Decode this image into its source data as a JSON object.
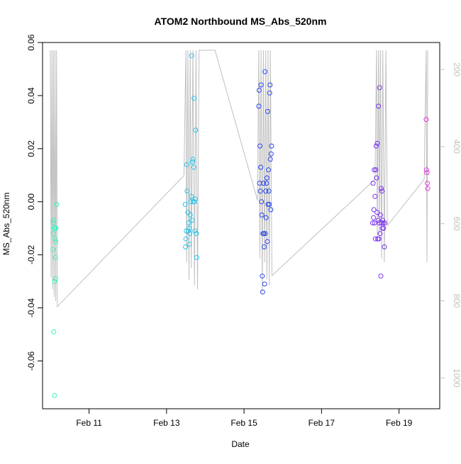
{
  "chart_data": {
    "type": "scatter",
    "title": "ATOM2 Northbound MS_Abs_520nm",
    "xlabel": "Date",
    "ylabel": "MS_Abs_520nm",
    "x_unit": "days since Feb 10",
    "xlim": [
      9.8,
      20.05
    ],
    "ylim": [
      -0.078,
      0.06
    ],
    "x_ticks": [
      {
        "value": 11,
        "label": "Feb 11"
      },
      {
        "value": 13,
        "label": "Feb 13"
      },
      {
        "value": 15,
        "label": "Feb 15"
      },
      {
        "value": 17,
        "label": "Feb 17"
      },
      {
        "value": 19,
        "label": "Feb 19"
      }
    ],
    "y_ticks": [
      {
        "value": -0.06,
        "label": "-0.06"
      },
      {
        "value": -0.04,
        "label": "-0.04"
      },
      {
        "value": -0.02,
        "label": "-0.02"
      },
      {
        "value": 0.0,
        "label": "0.00"
      },
      {
        "value": 0.02,
        "label": "0.02"
      },
      {
        "value": 0.04,
        "label": "0.04"
      },
      {
        "value": 0.06,
        "label": "0.06"
      }
    ],
    "y2_label": "",
    "y2_ticks": [
      {
        "value": 200,
        "label": "200"
      },
      {
        "value": 400,
        "label": "400"
      },
      {
        "value": 600,
        "label": "600"
      },
      {
        "value": 800,
        "label": "800"
      },
      {
        "value": 1000,
        "label": "1000"
      }
    ],
    "y2lim": [
      1080,
      130
    ],
    "grid": false,
    "legend": "none",
    "depth_color": "#bfbfbf",
    "series": [
      {
        "color": "#3cf0bd",
        "points": [
          [
            10.07,
            -0.018
          ],
          [
            10.08,
            -0.012
          ],
          [
            10.08,
            -0.008
          ],
          [
            10.09,
            -0.007
          ],
          [
            10.09,
            -0.049
          ],
          [
            10.1,
            -0.01
          ],
          [
            10.11,
            -0.03
          ],
          [
            10.11,
            -0.073
          ],
          [
            10.12,
            -0.01
          ],
          [
            10.12,
            -0.014
          ],
          [
            10.13,
            -0.021
          ],
          [
            10.13,
            -0.029
          ],
          [
            10.14,
            -0.015
          ],
          [
            10.15,
            -0.01
          ],
          [
            10.16,
            -0.001
          ]
        ]
      },
      {
        "color": "#27c3ea",
        "points": [
          [
            13.48,
            -0.001
          ],
          [
            13.49,
            -0.017
          ],
          [
            13.5,
            -0.014
          ],
          [
            13.51,
            -0.011
          ],
          [
            13.52,
            0.014
          ],
          [
            13.53,
            0.004
          ],
          [
            13.55,
            -0.004
          ],
          [
            13.56,
            -0.011
          ],
          [
            13.57,
            -0.008
          ],
          [
            13.58,
            -0.01
          ],
          [
            13.59,
            -0.016
          ],
          [
            13.6,
            -0.012
          ],
          [
            13.61,
            -0.005
          ],
          [
            13.62,
            0.0
          ],
          [
            13.64,
            0.002
          ],
          [
            13.65,
            0.055
          ],
          [
            13.66,
            -0.007
          ],
          [
            13.67,
            0.015
          ],
          [
            13.68,
            0.016
          ],
          [
            13.69,
            0.0
          ],
          [
            13.7,
            0.013
          ],
          [
            13.71,
            0.039
          ],
          [
            13.72,
            0.0
          ],
          [
            13.73,
            -0.011
          ],
          [
            13.74,
            0.001
          ],
          [
            13.75,
            0.027
          ],
          [
            13.77,
            -0.012
          ],
          [
            13.78,
            -0.021
          ]
        ]
      },
      {
        "color": "#2b47f0",
        "points": [
          [
            15.38,
            0.036
          ],
          [
            15.39,
            0.042
          ],
          [
            15.4,
            0.007
          ],
          [
            15.41,
            0.021
          ],
          [
            15.42,
            0.004
          ],
          [
            15.43,
            0.013
          ],
          [
            15.44,
            0.044
          ],
          [
            15.45,
            0.0
          ],
          [
            15.46,
            -0.005
          ],
          [
            15.47,
            -0.028
          ],
          [
            15.48,
            -0.034
          ],
          [
            15.49,
            -0.012
          ],
          [
            15.5,
            0.007
          ],
          [
            15.51,
            -0.012
          ],
          [
            15.52,
            -0.017
          ],
          [
            15.53,
            -0.031
          ],
          [
            15.54,
            0.049
          ],
          [
            15.55,
            -0.012
          ],
          [
            15.56,
            0.004
          ],
          [
            15.57,
            -0.006
          ],
          [
            15.58,
            0.007
          ],
          [
            15.59,
            0.009
          ],
          [
            15.6,
            -0.015
          ],
          [
            15.61,
            0.034
          ],
          [
            15.62,
            -0.001
          ],
          [
            15.63,
            0.012
          ],
          [
            15.64,
            0.004
          ],
          [
            15.65,
            -0.001
          ],
          [
            15.66,
            0.041
          ],
          [
            15.67,
            0.044
          ],
          [
            15.68,
            0.016
          ],
          [
            15.69,
            -0.003
          ],
          [
            15.7,
            0.018
          ],
          [
            15.71,
            0.021
          ]
        ]
      },
      {
        "color": "#7a2ff0",
        "points": [
          [
            18.32,
            -0.008
          ],
          [
            18.33,
            0.007
          ],
          [
            18.34,
            -0.006
          ],
          [
            18.35,
            -0.003
          ],
          [
            18.36,
            0.012
          ],
          [
            18.37,
            -0.008
          ],
          [
            18.38,
            0.002
          ],
          [
            18.39,
            -0.014
          ],
          [
            18.4,
            0.012
          ],
          [
            18.41,
            0.021
          ],
          [
            18.42,
            0.009
          ],
          [
            18.43,
            -0.004
          ],
          [
            18.44,
            0.022
          ],
          [
            18.45,
            -0.014
          ],
          [
            18.46,
            -0.007
          ],
          [
            18.47,
            0.036
          ],
          [
            18.48,
            -0.014
          ],
          [
            18.49,
            -0.008
          ],
          [
            18.5,
            0.043
          ],
          [
            18.51,
            -0.012
          ],
          [
            18.52,
            -0.005
          ],
          [
            18.53,
            -0.028
          ],
          [
            18.54,
            0.005
          ],
          [
            18.55,
            -0.008
          ],
          [
            18.56,
            0.004
          ],
          [
            18.57,
            -0.01
          ],
          [
            18.58,
            -0.007
          ],
          [
            18.59,
            -0.008
          ],
          [
            18.6,
            -0.01
          ],
          [
            18.62,
            -0.017
          ],
          [
            18.63,
            -0.008
          ]
        ]
      },
      {
        "color": "#e53ae0",
        "points": [
          [
            19.7,
            0.031
          ],
          [
            19.71,
            0.012
          ],
          [
            19.72,
            0.011
          ],
          [
            19.73,
            0.007
          ],
          [
            19.74,
            0.005
          ]
        ]
      }
    ],
    "depth_trace": [
      [
        10.0,
        150
      ],
      [
        10.02,
        740
      ],
      [
        10.04,
        150
      ],
      [
        10.06,
        770
      ],
      [
        10.08,
        150
      ],
      [
        10.1,
        790
      ],
      [
        10.12,
        150
      ],
      [
        10.14,
        800
      ],
      [
        10.16,
        150
      ],
      [
        10.18,
        815
      ],
      [
        13.45,
        475
      ],
      [
        13.5,
        150
      ],
      [
        13.52,
        700
      ],
      [
        13.55,
        150
      ],
      [
        13.58,
        745
      ],
      [
        13.61,
        150
      ],
      [
        13.64,
        715
      ],
      [
        13.68,
        150
      ],
      [
        13.72,
        760
      ],
      [
        13.76,
        150
      ],
      [
        13.8,
        770
      ],
      [
        13.84,
        150
      ],
      [
        14.25,
        150
      ],
      [
        15.35,
        540
      ],
      [
        15.38,
        150
      ],
      [
        15.41,
        690
      ],
      [
        15.44,
        150
      ],
      [
        15.47,
        780
      ],
      [
        15.5,
        150
      ],
      [
        15.53,
        700
      ],
      [
        15.56,
        150
      ],
      [
        15.59,
        745
      ],
      [
        15.62,
        150
      ],
      [
        15.65,
        760
      ],
      [
        15.68,
        150
      ],
      [
        15.72,
        735
      ],
      [
        18.38,
        485
      ],
      [
        18.42,
        150
      ],
      [
        18.44,
        640
      ],
      [
        18.47,
        150
      ],
      [
        18.49,
        630
      ],
      [
        18.52,
        150
      ],
      [
        18.55,
        690
      ],
      [
        18.58,
        150
      ],
      [
        18.62,
        700
      ],
      [
        18.66,
        150
      ],
      [
        18.7,
        605
      ],
      [
        19.65,
        485
      ],
      [
        19.7,
        150
      ],
      [
        19.72,
        700
      ],
      [
        19.74,
        150
      ]
    ]
  }
}
